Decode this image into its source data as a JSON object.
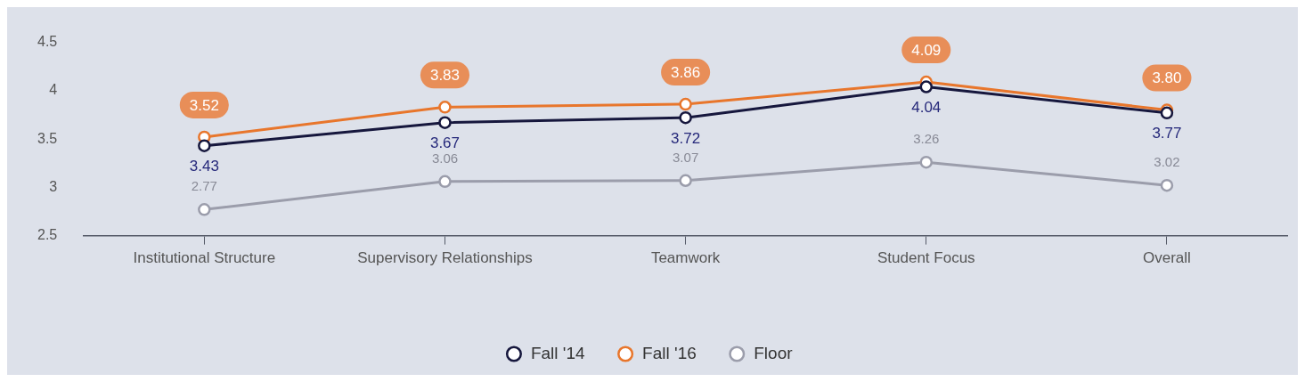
{
  "chart_data": {
    "type": "line",
    "categories": [
      "Institutional Structure",
      "Supervisory Relationships",
      "Teamwork",
      "Student Focus",
      "Overall"
    ],
    "series": [
      {
        "name": "Fall '14",
        "color": "#16173d",
        "values": [
          3.43,
          3.67,
          3.72,
          4.04,
          3.77
        ],
        "value_labels": [
          "3.43",
          "3.67",
          "3.72",
          "4.04",
          "3.77"
        ]
      },
      {
        "name": "Fall '16",
        "color": "#e8762c",
        "values": [
          3.52,
          3.83,
          3.86,
          4.09,
          3.8
        ],
        "value_labels": [
          "3.52",
          "3.83",
          "3.86",
          "4.09",
          "3.80"
        ]
      },
      {
        "name": "Floor",
        "color": "#9b9dab",
        "values": [
          2.77,
          3.06,
          3.07,
          3.26,
          3.02
        ],
        "value_labels": [
          "2.77",
          "3.06",
          "3.07",
          "3.26",
          "3.02"
        ]
      }
    ],
    "ylim": [
      2.5,
      4.5
    ],
    "yticks": [
      2.5,
      3,
      3.5,
      4,
      4.5
    ],
    "grid": false,
    "legend": "bottom",
    "marker": "circle",
    "line_style": "solid"
  }
}
